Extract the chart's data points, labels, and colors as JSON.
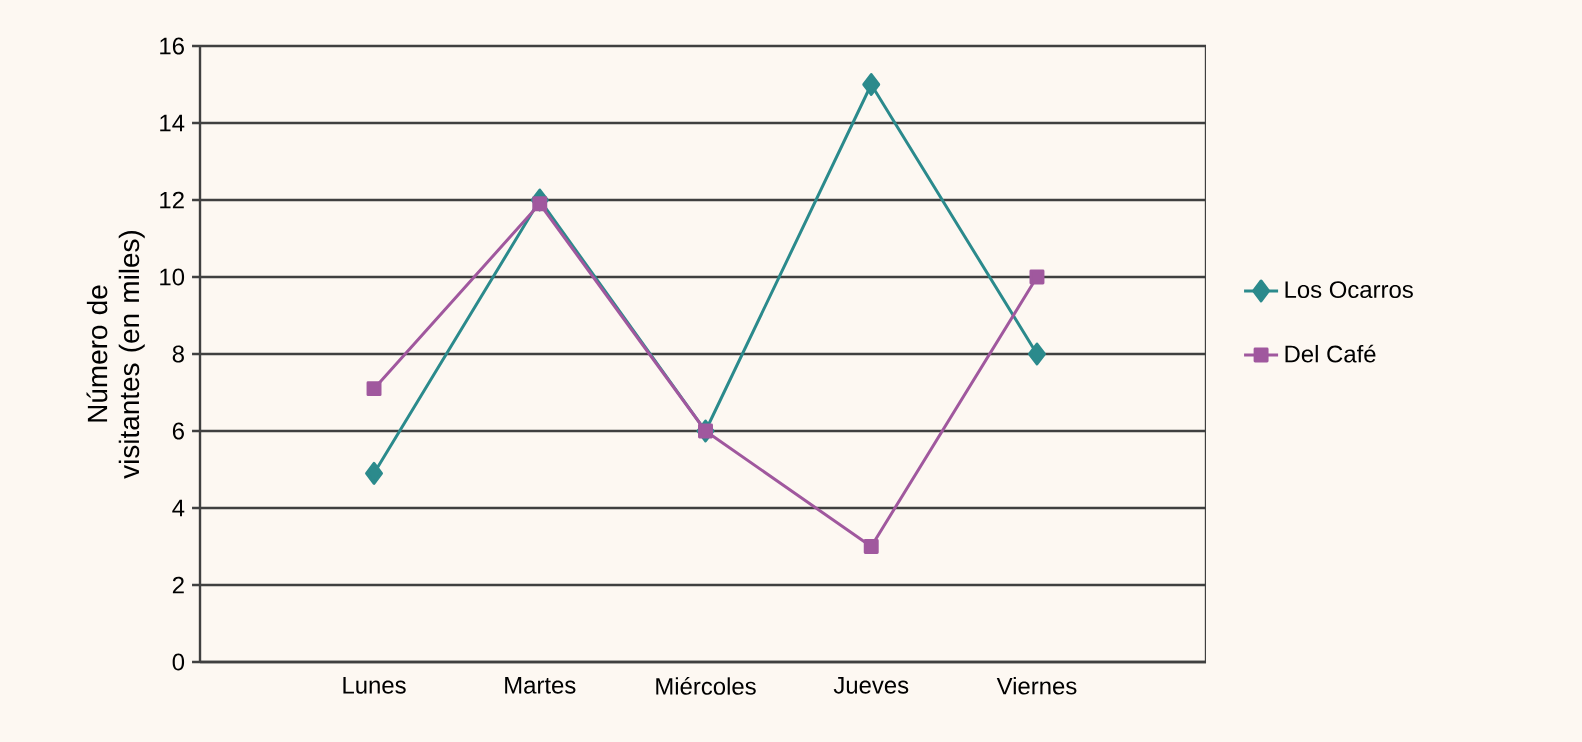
{
  "chart_data": {
    "type": "line",
    "ylabel": "Número de visitantes (en miles)",
    "categories": [
      "Lunes",
      "Martes",
      "Miércoles",
      "Jueves",
      "Viernes"
    ],
    "series": [
      {
        "name": "Los Ocarros",
        "color": "#2b8a8c",
        "marker": "diamond",
        "values": [
          4.9,
          12,
          6,
          15,
          8
        ]
      },
      {
        "name": "Del Café",
        "color": "#a0589e",
        "marker": "square",
        "values": [
          7.1,
          11.9,
          6,
          3,
          10
        ]
      }
    ],
    "ylim": [
      0,
      16
    ],
    "yticks": [
      0,
      2,
      4,
      6,
      8,
      10,
      12,
      14,
      16
    ],
    "grid": "y",
    "legend": "right",
    "line_style": "solid"
  }
}
